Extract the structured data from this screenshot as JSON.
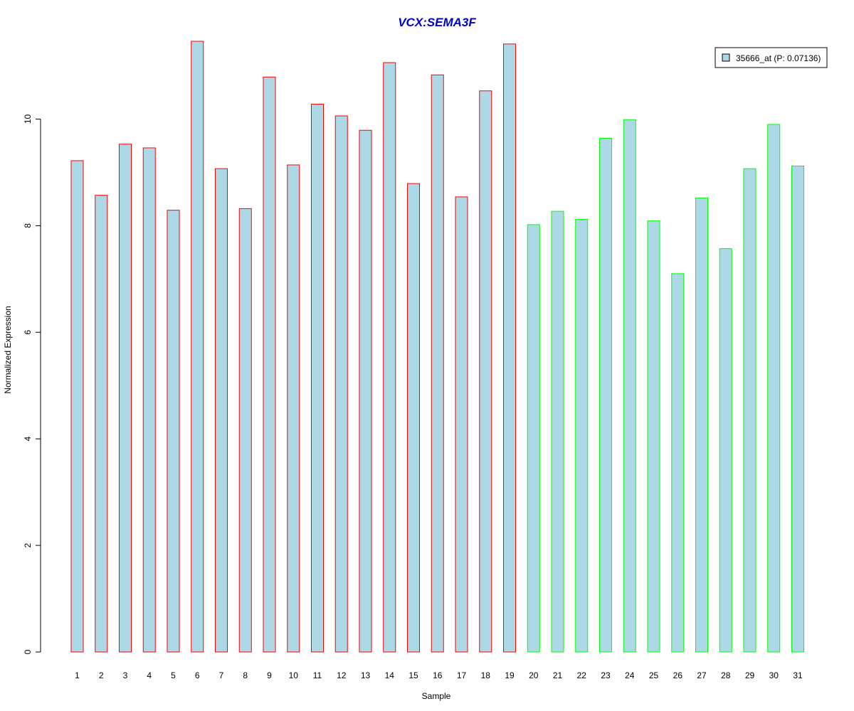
{
  "chart_data": {
    "type": "bar",
    "title": "VCX:SEMA3F",
    "xlabel": "Sample",
    "ylabel": "Normalized Expression",
    "ylim": [
      0,
      11.6
    ],
    "yticks": [
      0,
      2,
      4,
      6,
      8,
      10
    ],
    "categories": [
      "1",
      "2",
      "3",
      "4",
      "5",
      "6",
      "7",
      "8",
      "9",
      "10",
      "11",
      "12",
      "13",
      "14",
      "15",
      "16",
      "17",
      "18",
      "19",
      "20",
      "21",
      "22",
      "23",
      "24",
      "25",
      "26",
      "27",
      "28",
      "29",
      "30",
      "31"
    ],
    "values": [
      9.22,
      8.57,
      9.53,
      9.46,
      8.29,
      11.46,
      9.07,
      8.32,
      10.79,
      9.14,
      10.28,
      10.06,
      9.79,
      11.06,
      8.79,
      10.83,
      8.54,
      10.53,
      11.41,
      8.02,
      8.27,
      8.12,
      9.64,
      9.99,
      8.09,
      7.1,
      8.52,
      7.57,
      9.07,
      9.9,
      9.12
    ],
    "groups": [
      {
        "from": 1,
        "to": 19,
        "border_color": "#ff0000"
      },
      {
        "from": 20,
        "to": 31,
        "border_color": "#00ff00"
      }
    ],
    "bar_fill": "#add8e6",
    "title_color": "#0000cc",
    "legend": {
      "label": "35666_at (P: 0.07136)",
      "position": "top-right",
      "swatch_color": "#add8e6"
    },
    "grid": false
  }
}
